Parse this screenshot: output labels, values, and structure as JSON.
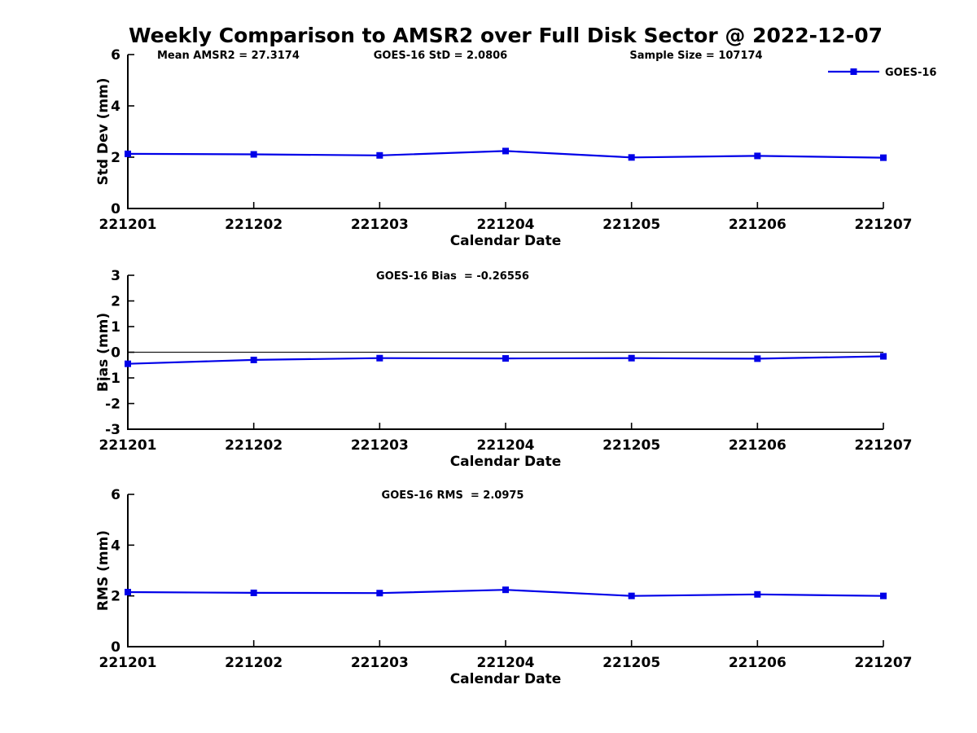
{
  "figure": {
    "title": "Weekly Comparison to AMSR2 over Full Disk Sector @ 2022-12-07"
  },
  "colors": {
    "series": "#0000E8",
    "axis": "#000000",
    "zero_line": "#1a1a1a",
    "background": "#ffffff",
    "text": "#000000"
  },
  "legend": {
    "label": "GOES-16",
    "position": "top-right"
  },
  "chart_data": [
    {
      "type": "line",
      "panel": "std-dev",
      "annotations": [
        "Mean AMSR2 = 27.3174",
        "GOES-16 StD = 2.0806",
        "Sample Size = 107174"
      ],
      "categories": [
        "221201",
        "221202",
        "221203",
        "221204",
        "221205",
        "221206",
        "221207"
      ],
      "series": [
        {
          "name": "GOES-16",
          "color": "#0000E8",
          "marker": "filled-square",
          "values": [
            2.13,
            2.11,
            2.07,
            2.24,
            1.99,
            2.05,
            1.98
          ]
        }
      ],
      "xlabel": "Calendar Date",
      "ylabel": "Std Dev (mm)",
      "ylim": [
        0,
        6
      ],
      "yticks": [
        0,
        2,
        4,
        6
      ],
      "grid": false,
      "legend_entry": "GOES-16"
    },
    {
      "type": "line",
      "panel": "bias",
      "title": "GOES-16 Bias  = -0.26556",
      "categories": [
        "221201",
        "221202",
        "221203",
        "221204",
        "221205",
        "221206",
        "221207"
      ],
      "series": [
        {
          "name": "GOES-16",
          "color": "#0000E8",
          "marker": "filled-square",
          "values": [
            -0.45,
            -0.3,
            -0.23,
            -0.24,
            -0.23,
            -0.25,
            -0.16
          ]
        }
      ],
      "xlabel": "Calendar Date",
      "ylabel": "Bias (mm)",
      "ylim": [
        -3,
        3
      ],
      "yticks": [
        -3,
        -2,
        -1,
        0,
        1,
        2,
        3
      ],
      "zero_line": true,
      "grid": false
    },
    {
      "type": "line",
      "panel": "rms",
      "title": "GOES-16 RMS  = 2.0975",
      "categories": [
        "221201",
        "221202",
        "221203",
        "221204",
        "221205",
        "221206",
        "221207"
      ],
      "series": [
        {
          "name": "GOES-16",
          "color": "#0000E8",
          "marker": "filled-square",
          "values": [
            2.15,
            2.12,
            2.11,
            2.24,
            2.0,
            2.06,
            2.0
          ]
        }
      ],
      "xlabel": "Calendar Date",
      "ylabel": "RMS (mm)",
      "ylim": [
        0,
        6
      ],
      "yticks": [
        0,
        2,
        4,
        6
      ],
      "grid": false
    }
  ]
}
